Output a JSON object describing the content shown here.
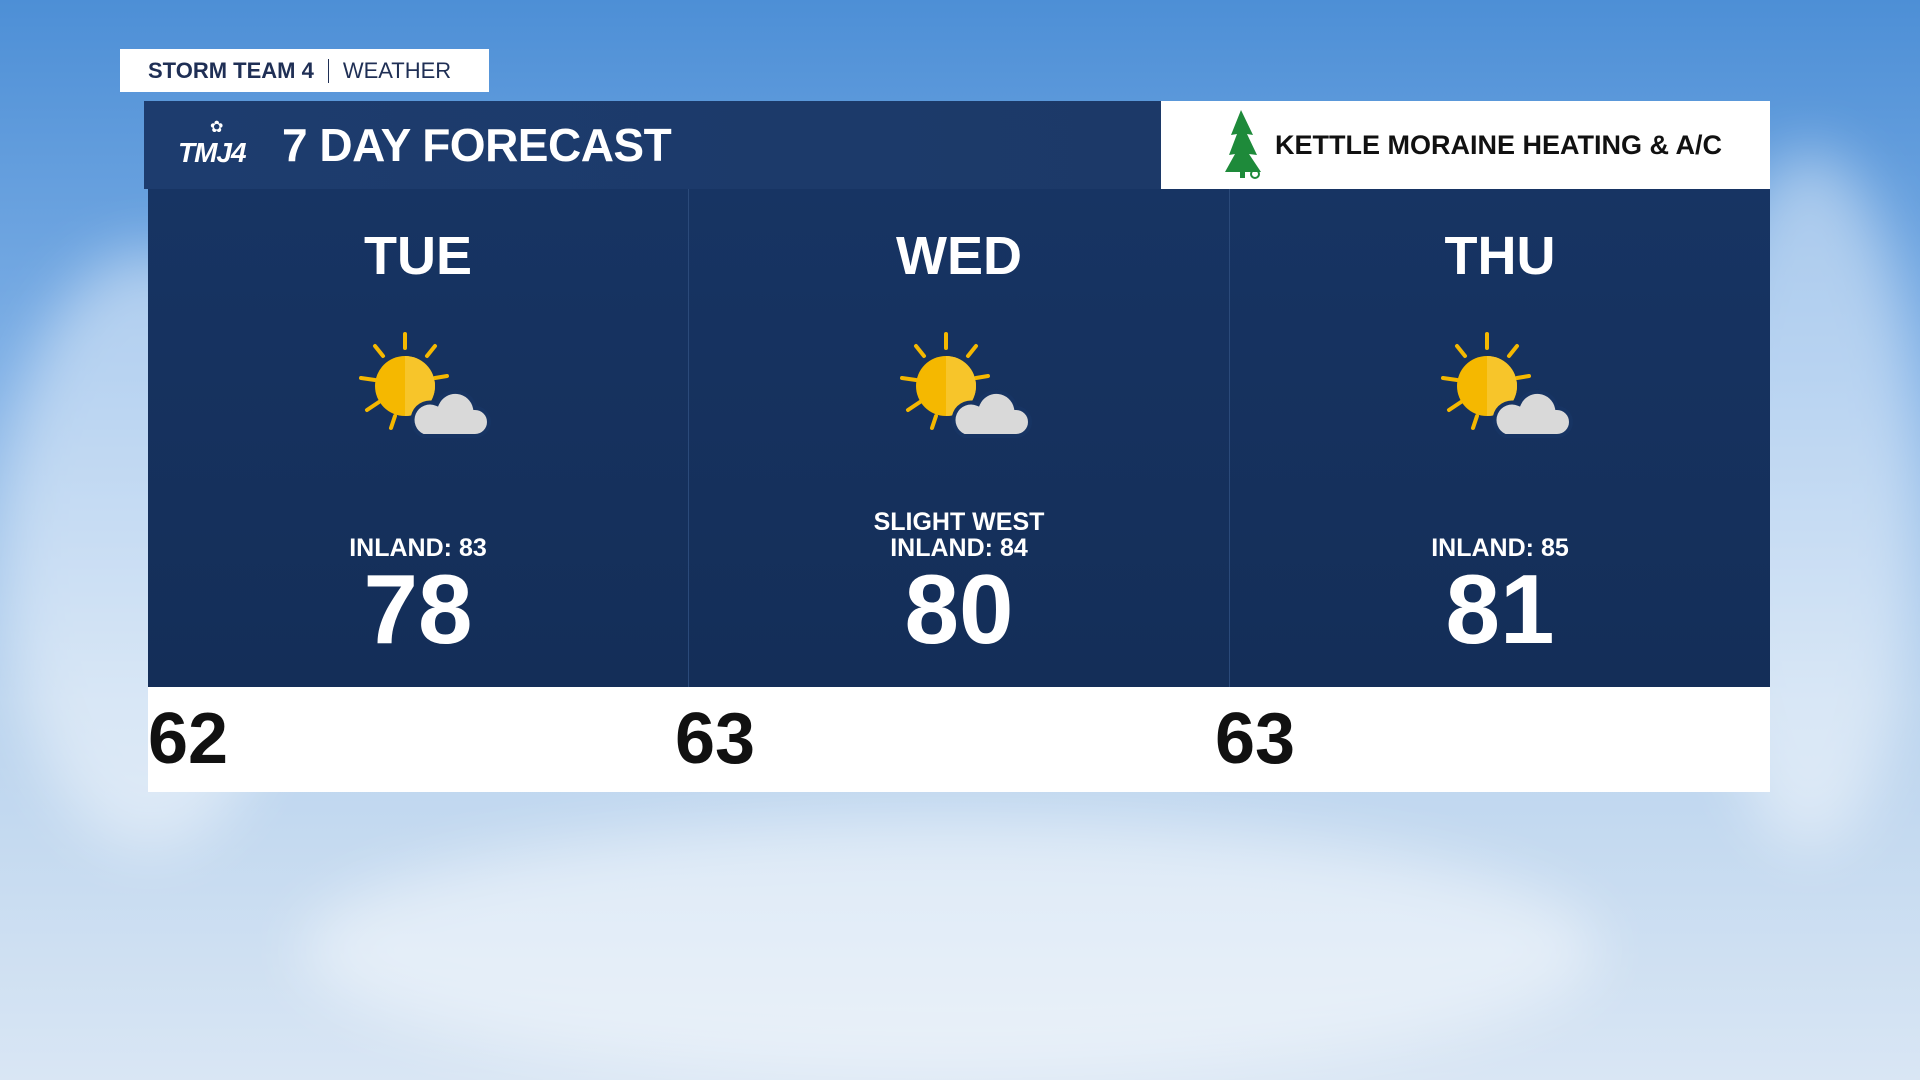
{
  "tag": {
    "brand": "STORM TEAM 4",
    "section": "WEATHER"
  },
  "header": {
    "logo": "TMJ4",
    "title": "7 DAY FORECAST"
  },
  "sponsor": {
    "name": "KETTLE MORAINE HEATING & A/C"
  },
  "colors": {
    "panel": "#173463",
    "sun": "#f5b800",
    "cloud": "#d9d9d9",
    "tree": "#1e8a3a"
  },
  "days": [
    {
      "day": "TUE",
      "icon": "partly-sunny-icon",
      "note1": "",
      "note2": "INLAND: 83",
      "high": "78",
      "low": "62"
    },
    {
      "day": "WED",
      "icon": "partly-sunny-icon",
      "note1": "SLIGHT WEST",
      "note2": "INLAND: 84",
      "high": "80",
      "low": "63"
    },
    {
      "day": "THU",
      "icon": "partly-sunny-icon",
      "note1": "",
      "note2": "INLAND: 85",
      "high": "81",
      "low": "63"
    }
  ]
}
